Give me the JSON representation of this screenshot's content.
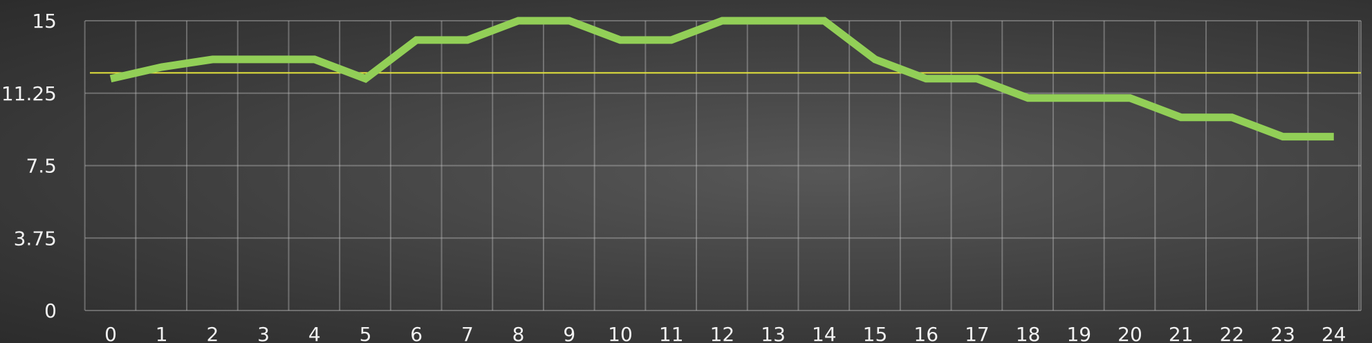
{
  "chart_data": {
    "type": "line",
    "x": [
      0,
      1,
      2,
      3,
      4,
      5,
      6,
      7,
      8,
      9,
      10,
      11,
      12,
      13,
      14,
      15,
      16,
      17,
      18,
      19,
      20,
      21,
      22,
      23,
      24
    ],
    "series": [
      {
        "values": [
          12,
          12.6,
          13,
          13,
          13,
          12,
          14,
          14,
          15,
          15,
          14,
          14,
          15,
          15,
          15,
          13,
          12,
          12,
          11,
          11,
          11,
          10,
          10,
          9,
          9
        ],
        "color": "#92cf57"
      }
    ],
    "reference_line": {
      "value": 12.3,
      "color": "#e6e63c"
    },
    "x_ticks": [
      "0",
      "1",
      "2",
      "3",
      "4",
      "5",
      "6",
      "7",
      "8",
      "9",
      "10",
      "11",
      "12",
      "13",
      "14",
      "15",
      "16",
      "17",
      "18",
      "19",
      "20",
      "21",
      "22",
      "23",
      "24"
    ],
    "y_ticks": [
      "0",
      "3.75",
      "7.5",
      "11.25",
      "15"
    ],
    "ylim": [
      0,
      15
    ],
    "grid": true,
    "title": "",
    "xlabel": "",
    "ylabel": ""
  }
}
